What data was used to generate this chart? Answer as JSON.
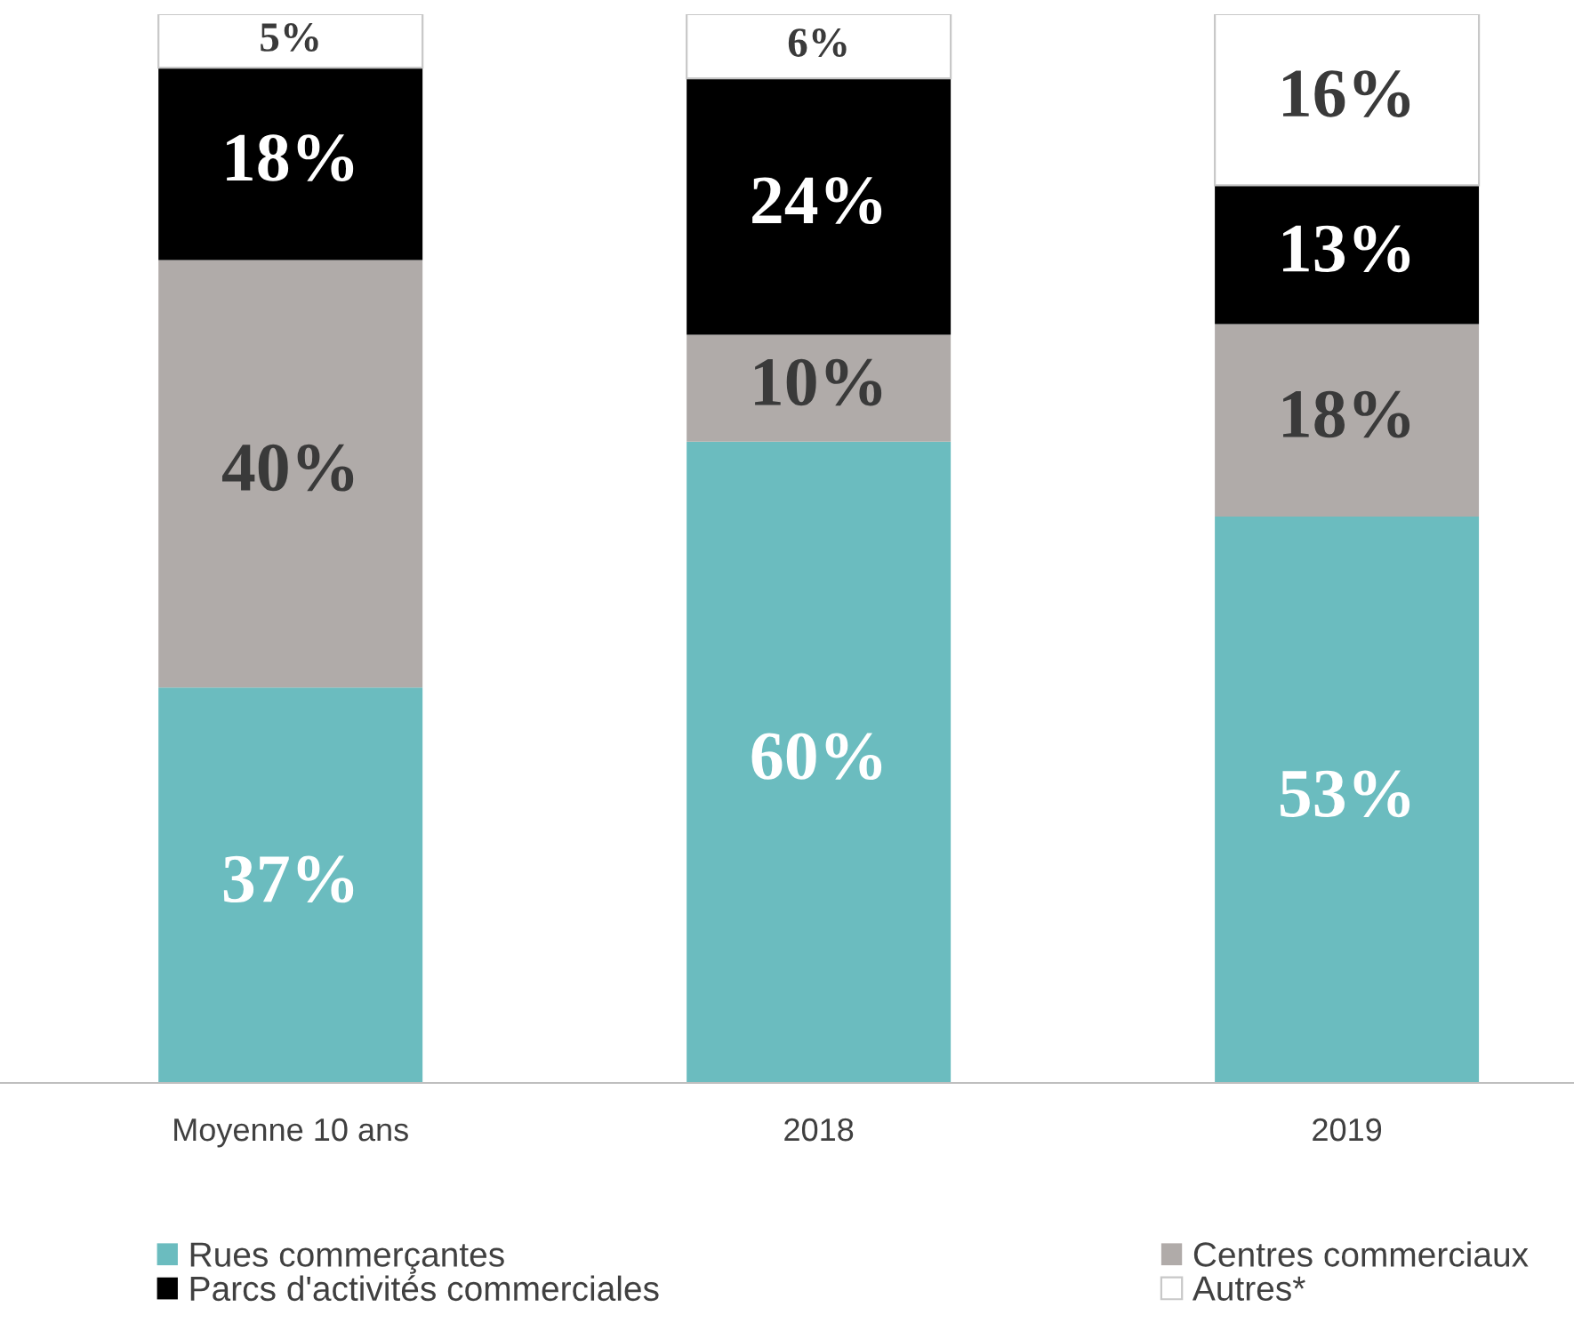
{
  "chart_data": {
    "type": "bar",
    "stacked": true,
    "categories": [
      "Moyenne 10 ans",
      "2018",
      "2019"
    ],
    "series": [
      {
        "name": "Rues commerçantes",
        "color": "#6bbcbf",
        "values": [
          37,
          60,
          53
        ],
        "value_labels": [
          "37%",
          "60%",
          "53%"
        ]
      },
      {
        "name": "Centres commerciaux",
        "color": "#b0aba9",
        "values": [
          40,
          10,
          18
        ],
        "value_labels": [
          "40%",
          "10%",
          "18%"
        ]
      },
      {
        "name": "Parcs d'activités commerciales",
        "color": "#000000",
        "values": [
          18,
          24,
          13
        ],
        "value_labels": [
          "18%",
          "24%",
          "13%"
        ]
      },
      {
        "name": "Autres*",
        "color": "#ffffff",
        "values": [
          5,
          6,
          16
        ],
        "value_labels": [
          "5%",
          "6%",
          "16%"
        ]
      }
    ],
    "legend": "bottom"
  }
}
